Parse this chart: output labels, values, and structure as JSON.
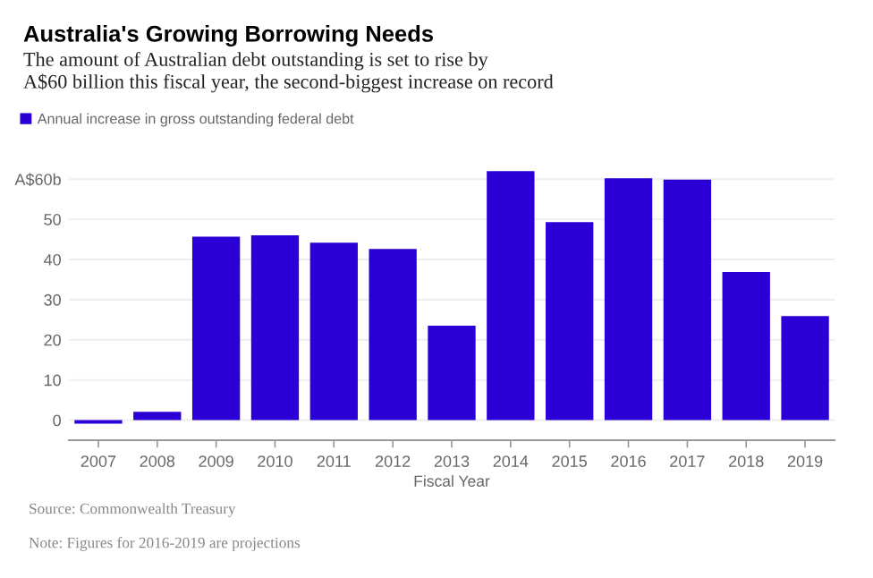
{
  "chart_data": {
    "type": "bar",
    "title": "Australia's Growing Borrowing Needs",
    "subtitle": "The amount of Australian debt outstanding is set to rise by\nA$60 billion this fiscal year, the second-biggest increase on record",
    "xlabel": "Fiscal Year",
    "categories": [
      "2007",
      "2008",
      "2009",
      "2010",
      "2011",
      "2012",
      "2013",
      "2014",
      "2015",
      "2016",
      "2017",
      "2018",
      "2019"
    ],
    "series": [
      {
        "name": "Annual increase in gross outstanding federal debt",
        "color": "#2b00d6",
        "values": [
          -0.9,
          2.1,
          45.7,
          46.0,
          44.2,
          42.6,
          23.5,
          62.0,
          49.3,
          60.2,
          59.9,
          36.9,
          25.9
        ]
      }
    ],
    "ylim": [
      -5,
      63
    ],
    "yticks": [
      0,
      10,
      20,
      30,
      40,
      50,
      {
        "value": 60,
        "label": "A$60b"
      }
    ],
    "grid": "y",
    "legend": "top left",
    "annotations": [
      "Source: Commonwealth Treasury",
      "Note: Figures for 2016-2019 are projections"
    ]
  }
}
